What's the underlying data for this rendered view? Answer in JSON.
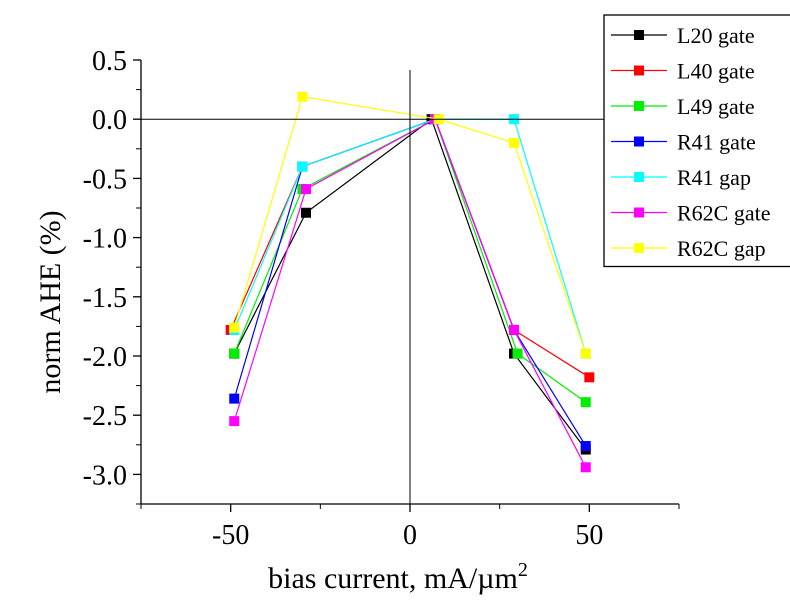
{
  "chart_data": {
    "type": "line",
    "xlabel": "bias current, mA/µm",
    "xlabel_superscript": "2",
    "ylabel": "norm AHE (%)",
    "xlim": [
      -75,
      75
    ],
    "ylim": [
      -3.25,
      0.5
    ],
    "x_ticks": [
      -50,
      0,
      50
    ],
    "x_tick_labels": [
      "-50",
      "0",
      "50"
    ],
    "y_ticks": [
      0.5,
      0.0,
      -0.5,
      -1.0,
      -1.5,
      -2.0,
      -2.5,
      -3.0
    ],
    "y_tick_labels": [
      "0.5",
      "0.0",
      "-0.5",
      "-1.0",
      "-1.5",
      "-2.0",
      "-2.5",
      "-3.0"
    ],
    "zero_lines": true,
    "grid": false,
    "legend_position": "top-right",
    "series": [
      {
        "name": "L20 gate",
        "color": "#000000",
        "x": [
          -49,
          -29,
          6,
          29,
          49
        ],
        "y": [
          -1.98,
          -0.79,
          0.0,
          -1.98,
          -2.79
        ]
      },
      {
        "name": "L40 gate",
        "color": "#ff0000",
        "x": [
          -50,
          -30,
          7,
          29,
          50
        ],
        "y": [
          -1.78,
          -0.4,
          0.0,
          -1.78,
          -2.18
        ]
      },
      {
        "name": "L49 gate",
        "color": "#00ee00",
        "x": [
          -49,
          -30,
          7,
          30,
          49
        ],
        "y": [
          -1.98,
          -0.59,
          0.0,
          -1.98,
          -2.39
        ]
      },
      {
        "name": "R41 gate",
        "color": "#0000ff",
        "x": [
          -49,
          -30,
          7,
          29,
          49
        ],
        "y": [
          -2.36,
          -0.4,
          0.0,
          -1.78,
          -2.76
        ]
      },
      {
        "name": "R41 gap",
        "color": "#00ffff",
        "x": [
          -49,
          -30,
          7,
          29,
          49
        ],
        "y": [
          -1.78,
          -0.4,
          0.0,
          0.0,
          -1.98
        ]
      },
      {
        "name": "R62C gate",
        "color": "#ff00ff",
        "x": [
          -49,
          -29,
          7,
          29,
          49
        ],
        "y": [
          -2.55,
          -0.59,
          0.0,
          -1.78,
          -2.94
        ]
      },
      {
        "name": "R62C gap",
        "color": "#ffff00",
        "x": [
          -49,
          -30,
          8,
          29,
          49
        ],
        "y": [
          -1.76,
          0.19,
          0.0,
          -0.2,
          -1.98
        ]
      }
    ]
  }
}
